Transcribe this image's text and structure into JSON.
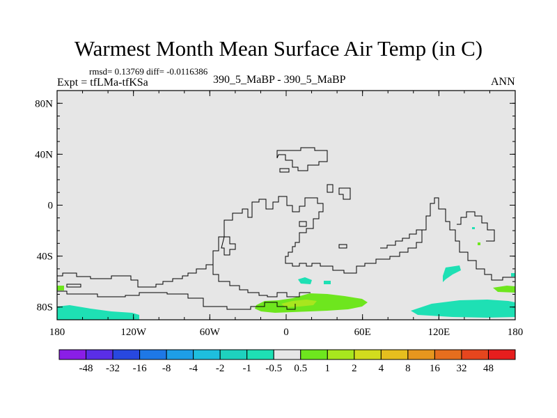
{
  "title": "Warmest Month Mean Surface Air Temp (in C)",
  "stats": "rmsd= 0.13769 diff= -0.0116386",
  "experiment": "Expt = tfLMa-tfKSa",
  "comparison": "390_5_MaBP - 390_5_MaBP",
  "season": "ANN",
  "map": {
    "lat_range": [
      -90,
      90
    ],
    "lon_range": [
      -180,
      180
    ],
    "lat_ticks": [
      {
        "value": 80,
        "label": "80N"
      },
      {
        "value": 40,
        "label": "40N"
      },
      {
        "value": 0,
        "label": "0"
      },
      {
        "value": -40,
        "label": "40S"
      },
      {
        "value": -80,
        "label": "80S"
      }
    ],
    "lon_ticks": [
      {
        "value": -180,
        "label": "180"
      },
      {
        "value": -120,
        "label": "120W"
      },
      {
        "value": -60,
        "label": "60W"
      },
      {
        "value": 0,
        "label": "0"
      },
      {
        "value": 60,
        "label": "60E"
      },
      {
        "value": 120,
        "label": "120E"
      },
      {
        "value": 180,
        "label": "180"
      }
    ],
    "background_color": "#e6e6e6"
  },
  "colorbar": {
    "labels": [
      "-48",
      "-32",
      "-16",
      "-8",
      "-4",
      "-2",
      "-1",
      "-0.5",
      "0.5",
      "1",
      "2",
      "4",
      "8",
      "16",
      "32",
      "48"
    ],
    "colors": [
      "#8a1ee6",
      "#5a2ee6",
      "#2848e0",
      "#1e78e6",
      "#1e9ee6",
      "#1ebede",
      "#1ed2be",
      "#1ee0b4",
      "#e6e6e6",
      "#6ee61e",
      "#a8e61e",
      "#d2dc1e",
      "#e6be1e",
      "#e6961e",
      "#e66e1e",
      "#e6461e",
      "#e61e1e"
    ]
  }
}
